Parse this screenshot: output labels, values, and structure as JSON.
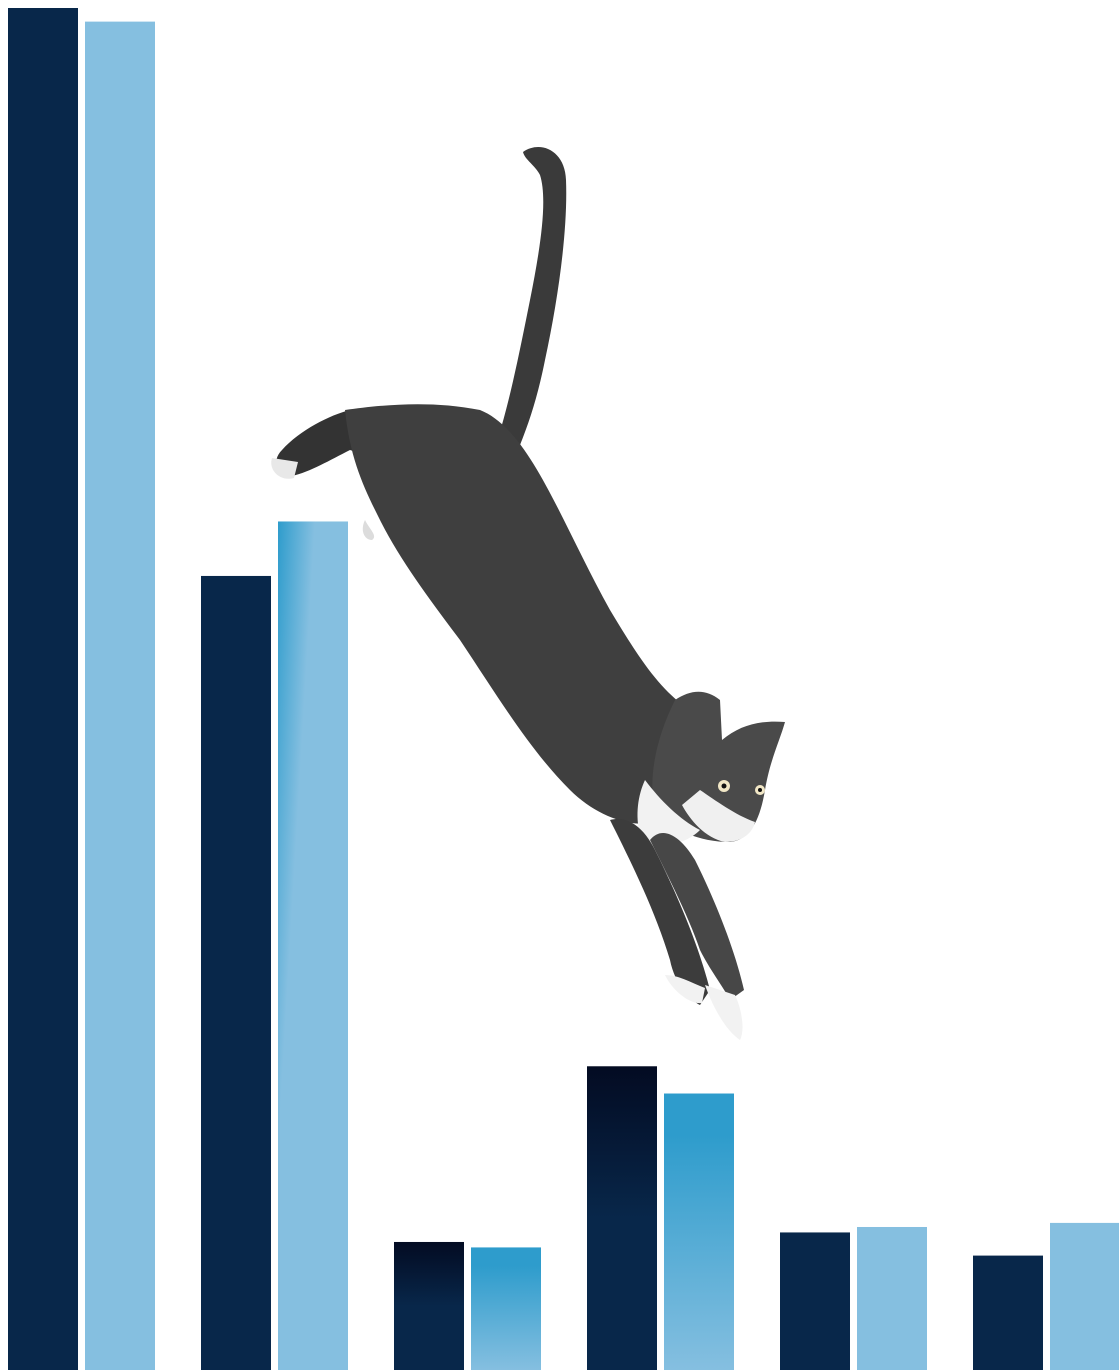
{
  "chart_data": {
    "type": "bar",
    "title": "",
    "xlabel": "",
    "ylabel": "",
    "legend": "none",
    "grid": false,
    "categories": [
      "",
      "",
      "",
      "",
      "",
      ""
    ],
    "series": [
      {
        "values": [
          100,
          58.3,
          9.4,
          22.3,
          10.1,
          8.4
        ]
      },
      {
        "values": [
          99.0,
          62.3,
          9.0,
          20.3,
          10.5,
          10.8
        ]
      }
    ],
    "ylim": [
      0,
      100
    ],
    "colors": {
      "series_dark": "#08274a",
      "series_light": "#85bfe0",
      "accent_blue": "#2e9ccc"
    }
  },
  "illustration": {
    "icon": "jumping-cat-icon"
  }
}
